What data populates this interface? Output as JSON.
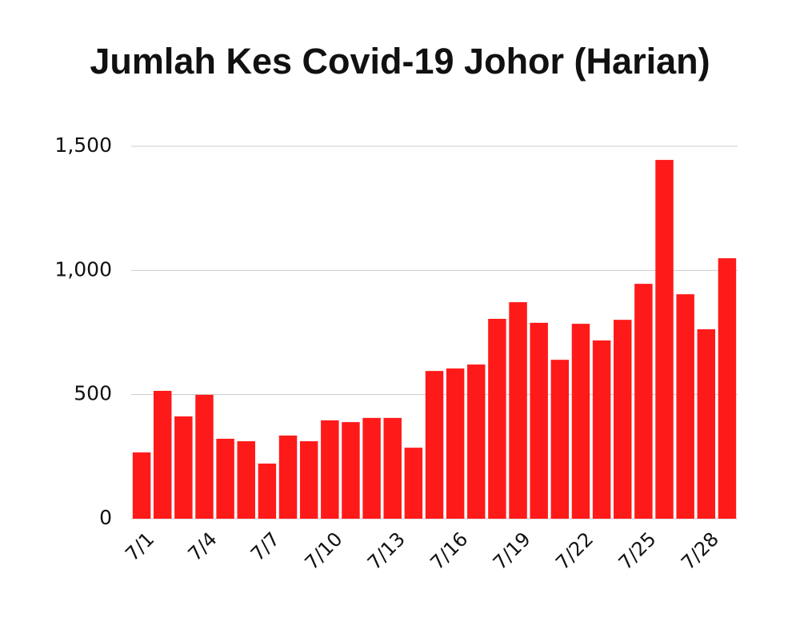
{
  "chart_data": {
    "type": "bar",
    "title": "Jumlah Kes Covid-19 Johor (Harian)",
    "categories": [
      "7/1",
      null,
      null,
      "7/4",
      null,
      null,
      "7/7",
      null,
      null,
      "7/10",
      null,
      null,
      "7/13",
      null,
      null,
      "7/16",
      null,
      null,
      "7/19",
      null,
      null,
      "7/22",
      null,
      null,
      "7/25",
      null,
      null,
      "7/28",
      null
    ],
    "values": [
      267,
      515,
      412,
      499,
      322,
      312,
      222,
      335,
      312,
      396,
      389,
      406,
      406,
      286,
      595,
      605,
      621,
      805,
      872,
      789,
      640,
      785,
      718,
      801,
      946,
      1445,
      904,
      763,
      1049
    ],
    "color": "#ff1a1a",
    "ylim": [
      0,
      1500
    ],
    "yticks": [
      0,
      500,
      {
        "value": 1000,
        "label": "1,000"
      },
      {
        "value": 1500,
        "label": "1,500"
      }
    ],
    "grid": true
  }
}
